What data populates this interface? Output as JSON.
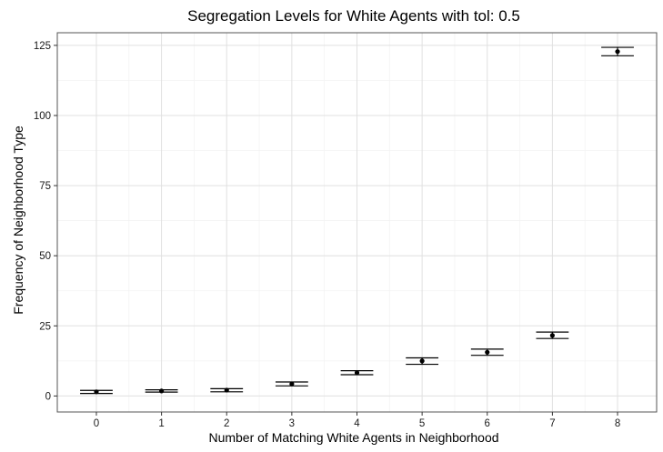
{
  "chart_data": {
    "type": "scatter",
    "title": "Segregation Levels for White Agents with tol: 0.5",
    "xlabel": "Number of Matching White Agents in Neighborhood",
    "ylabel": "Frequency of Neighborhood Type",
    "x": [
      0,
      1,
      2,
      3,
      4,
      5,
      6,
      7,
      8
    ],
    "values": [
      1.5,
      1.8,
      2.1,
      4.3,
      8.3,
      12.5,
      15.6,
      21.6,
      122.8
    ],
    "error_lower": [
      0.9,
      1.4,
      1.5,
      3.6,
      7.6,
      11.3,
      14.5,
      20.5,
      121.3
    ],
    "error_upper": [
      2.0,
      2.2,
      2.6,
      5.0,
      9.0,
      13.6,
      16.7,
      22.8,
      124.3
    ],
    "xlim": [
      -0.6,
      8.6
    ],
    "ylim": [
      -5.7,
      129.5
    ],
    "x_ticks": [
      0,
      1,
      2,
      3,
      4,
      5,
      6,
      7,
      8
    ],
    "y_ticks": [
      0,
      25,
      50,
      75,
      100,
      125
    ],
    "grid": true,
    "legend": "none"
  }
}
